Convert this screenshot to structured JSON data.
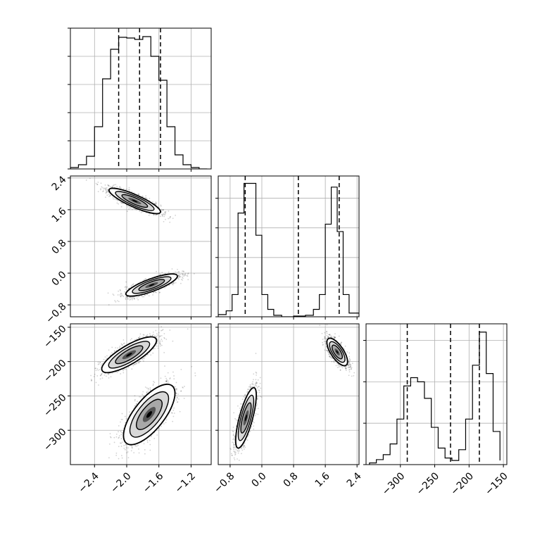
{
  "chart_data": {
    "type": "corner",
    "grid": true,
    "variables": [
      {
        "range": [
          -2.7,
          -0.95
        ],
        "ticks": [
          "−2.4",
          "−2.0",
          "−1.6",
          "−1.2"
        ],
        "tick_values": [
          -2.4,
          -2.0,
          -1.6,
          -1.2
        ],
        "quantiles": [
          -2.1,
          -1.84,
          -1.58
        ]
      },
      {
        "range": [
          -1.1,
          2.45
        ],
        "ticks": [
          "−0.8",
          "0.0",
          "0.8",
          "1.6",
          "2.4"
        ],
        "tick_values": [
          -0.8,
          0.0,
          0.8,
          1.6,
          2.4
        ],
        "quantiles": [
          -0.42,
          0.92,
          1.95
        ]
      },
      {
        "range": [
          -350,
          -145
        ],
        "ticks": [
          "−300",
          "−250",
          "−200",
          "−150"
        ],
        "tick_values": [
          -300,
          -250,
          -200,
          -150
        ],
        "quantiles": [
          -290,
          -227,
          -185
        ]
      }
    ],
    "panels": [
      {
        "kind": "histogram",
        "row": 0,
        "col": 0,
        "bins": [
          -2.7,
          -2.6,
          -2.5,
          -2.4,
          -2.3,
          -2.2,
          -2.1,
          -2.0,
          -1.9,
          -1.8,
          -1.7,
          -1.6,
          -1.5,
          -1.4,
          -1.3,
          -1.2,
          -1.1,
          -1.0
        ],
        "counts": [
          2,
          6,
          18,
          60,
          128,
          170,
          187,
          186,
          184,
          188,
          160,
          126,
          60,
          20,
          6,
          2,
          0
        ],
        "ymax": 200,
        "yticks": [
          0,
          40,
          80,
          120,
          160,
          200
        ]
      },
      {
        "kind": "histogram",
        "row": 1,
        "col": 1,
        "bins": [
          -1.1,
          -0.9,
          -0.75,
          -0.6,
          -0.45,
          -0.3,
          -0.15,
          0.0,
          0.15,
          0.3,
          0.5,
          0.8,
          1.1,
          1.3,
          1.45,
          1.6,
          1.75,
          1.9,
          2.05,
          2.2,
          2.45
        ],
        "counts": [
          3,
          8,
          30,
          140,
          180,
          180,
          110,
          30,
          10,
          2,
          0,
          1,
          2,
          10,
          30,
          125,
          175,
          115,
          30,
          5
        ],
        "ymax": 190,
        "yticks": [
          0,
          40,
          80,
          120,
          160
        ]
      },
      {
        "kind": "histogram",
        "row": 2,
        "col": 2,
        "bins": [
          -345,
          -335,
          -325,
          -315,
          -305,
          -295,
          -285,
          -275,
          -265,
          -255,
          -245,
          -235,
          -225,
          -215,
          -205,
          -195,
          -185,
          -175,
          -165,
          -155
        ],
        "counts": [
          2,
          6,
          12,
          25,
          55,
          95,
          105,
          100,
          80,
          45,
          20,
          8,
          5,
          18,
          55,
          120,
          160,
          110,
          40,
          5
        ],
        "ymax": 170,
        "yticks": [
          0,
          50,
          100,
          150
        ]
      },
      {
        "kind": "scatter2d",
        "row": 1,
        "col": 0,
        "x_var": 0,
        "y_var": 1,
        "clusters": [
          {
            "cx": -1.9,
            "cy": 1.82,
            "sx": 0.16,
            "sy": 0.16,
            "rho": -0.85,
            "n": 1400
          },
          {
            "cx": -1.69,
            "cy": -0.3,
            "sx": 0.16,
            "sy": 0.14,
            "rho": 0.8,
            "n": 1400
          }
        ]
      },
      {
        "kind": "scatter2d",
        "row": 2,
        "col": 0,
        "x_var": 0,
        "y_var": 2,
        "clusters": [
          {
            "cx": -1.97,
            "cy": -190,
            "sx": 0.17,
            "sy": 13,
            "rho": 0.8,
            "n": 1400
          },
          {
            "cx": -1.72,
            "cy": -277,
            "sx": 0.16,
            "sy": 22,
            "rho": 0.7,
            "n": 1400
          }
        ]
      },
      {
        "kind": "scatter2d",
        "row": 2,
        "col": 1,
        "x_var": 1,
        "y_var": 2,
        "clusters": [
          {
            "cx": -0.4,
            "cy": -282,
            "sx": 0.13,
            "sy": 22,
            "rho": 0.75,
            "n": 1400
          },
          {
            "cx": 1.9,
            "cy": -186,
            "sx": 0.13,
            "sy": 10,
            "rho": -0.7,
            "n": 1400
          }
        ]
      }
    ]
  }
}
